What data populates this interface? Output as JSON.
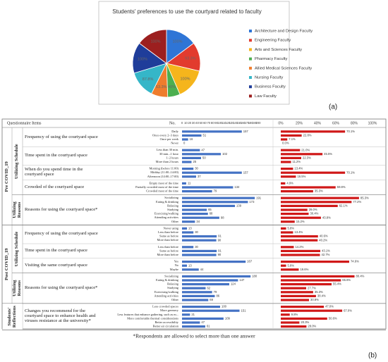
{
  "chart_data": [
    {
      "type": "pie",
      "title": "Students' preferences to use the courtyard related to faculty",
      "categories": [
        "Architecture and Design Faculty",
        "Engineering Faculty",
        "Arts and Sciences Faculty",
        "Pharmacy Faculty",
        "Allied Medical Sciences Faculty",
        "Nursing Faculty",
        "Business Faculty",
        "Law Faculty"
      ],
      "values": [
        100,
        93.3,
        100,
        40,
        53.3,
        87.8,
        100,
        100
      ],
      "value_labels": [
        "100%",
        "93.3%",
        "100%",
        "40%",
        "53.3%",
        "87.8%",
        "100%",
        "100%"
      ],
      "colors": [
        "#2f75d6",
        "#e23b2e",
        "#f5b51c",
        "#4caf50",
        "#ef7d2d",
        "#35b6c8",
        "#1f3d9a",
        "#9c1f1f"
      ],
      "legend": "right",
      "panel_label": "(a)"
    },
    {
      "type": "table_bars",
      "header": {
        "items": "Questionnaire Items",
        "count": "No."
      },
      "xlim": [
        0,
        200
      ],
      "xticks": [
        0,
        10,
        20,
        30,
        40,
        50,
        60,
        70,
        80,
        90,
        100,
        110,
        120,
        130,
        140,
        150,
        160,
        170,
        180,
        190,
        200
      ],
      "x2lim": [
        0,
        100
      ],
      "x2ticks": [
        {
          "value": 0,
          "label": "0%"
        },
        {
          "value": 20,
          "label": "20%"
        },
        {
          "value": 40,
          "label": "40%"
        },
        {
          "value": 60,
          "label": "60%"
        },
        {
          "value": 80,
          "label": "80%"
        },
        {
          "value": 100,
          "label": "100%"
        }
      ],
      "count_color": "#4472c4",
      "percent_color": "#d01818",
      "periods": [
        {
          "label": "Pre COVID_19",
          "groups": [
            {
              "label": "Utilizing Schedule",
              "questions": [
                {
                  "text": "Frequency of using the courtyard space",
                  "categories": [
                    "Daily",
                    "Once every 2–3 days",
                    "Once per week",
                    "Never"
                  ],
                  "values": [
                    157,
                    51,
                    16,
                    0
                  ],
                  "percents": [
                    70.1,
                    22.8,
                    7.1,
                    0.0
                  ],
                  "percent_labels": [
                    "70.1%",
                    "22.8%",
                    "7.1%",
                    "0.0%"
                  ]
                },
                {
                  "text": "Time spent in the courtyard space",
                  "categories": [
                    "Less than 30 min.",
                    "30 min.–1 hour",
                    "1–2 hours",
                    "More than 2 hours"
                  ],
                  "values": [
                    47,
                    102,
                    50,
                    25
                  ],
                  "percents": [
                    21.0,
                    45.5,
                    22.3,
                    11.2
                  ],
                  "percent_labels": [
                    "21.0%",
                    "45.5%",
                    "22.3%",
                    "11.2%"
                  ]
                },
                {
                  "text": "When do you spend time in the courtyard space",
                  "categories": [
                    "Morning (before 11:00)",
                    "Midday (11:00–14:00)",
                    "Afternoon (14:00–17:00)"
                  ],
                  "values": [
                    30,
                    157,
                    37
                  ],
                  "percents": [
                    13.4,
                    70.1,
                    16.5
                  ],
                  "percent_labels": [
                    "13.4%",
                    "70.1%",
                    "16.5%"
                  ]
                },
                {
                  "text": "Crowded of the courtyard space",
                  "categories": [
                    "Empty most of the time",
                    "Partially crowded most of the time",
                    "Crowded most of the time"
                  ],
                  "values": [
                    11,
                    134,
                    79
                  ],
                  "percents": [
                    4.9,
                    59.8,
                    35.3
                  ],
                  "percent_labels": [
                    "4.9%",
                    "59.8%",
                    "35.3%"
                  ]
                }
              ]
            },
            {
              "label": "Utilizing Reasons",
              "questions": [
                {
                  "text": "Reasons for using the courtyard space*",
                  "categories": [
                    "Socializing",
                    "Eating & drinking",
                    "Relaxing",
                    "Studying",
                    "Exercising/walking",
                    "Attending activities",
                    "Other"
                  ],
                  "values": [
                    191,
                    173,
                    139,
                    65,
                    68,
                    98,
                    34
                  ],
                  "percents": [
                    85.3,
                    77.2,
                    62.1,
                    29.0,
                    30.4,
                    43.8,
                    15.2
                  ],
                  "percent_labels": [
                    "85.3%",
                    "77.2%",
                    "62.1%",
                    "29.0%",
                    "30.4%",
                    "43.8%",
                    "15.2%"
                  ]
                }
              ]
            }
          ]
        },
        {
          "label": "Post COVID_19",
          "groups": [
            {
              "label": "Utilizing Schedule",
              "questions": [
                {
                  "text": "Frequency of using the courtyard space",
                  "categories": [
                    "Never using",
                    "Less than before",
                    "Same as before",
                    "More than before"
                  ],
                  "values": [
                    13,
                    30,
                    91,
                    90
                  ],
                  "percents": [
                    5.8,
                    13.4,
                    40.6,
                    40.2
                  ],
                  "percent_labels": [
                    "5.8%",
                    "13.4%",
                    "40.6%",
                    "40.2%"
                  ]
                },
                {
                  "text": "Time spent in the courtyard space",
                  "categories": [
                    "Less than before",
                    "Same as before",
                    "More than before"
                  ],
                  "values": [
                    30,
                    91,
                    90
                  ],
                  "percents": [
                    14.2,
                    43.1,
                    42.7
                  ],
                  "percent_labels": [
                    "14.2%",
                    "43.1%",
                    "42.7%"
                  ]
                },
                {
                  "text": "Visiting the same courtyard space",
                  "categories": [
                    "Yes",
                    "No",
                    "Maybe"
                  ],
                  "values": [
                    167,
                    13,
                    44
                  ],
                  "percents": [
                    74.6,
                    5.8,
                    19.6
                  ],
                  "percent_labels": [
                    "74.6%",
                    "5.8%",
                    "19.6%"
                  ]
                }
              ]
            },
            {
              "label": "Utilizing Reasons",
              "questions": [
                {
                  "text": "Reasons for using the courtyard space*",
                  "categories": [
                    "Socializing",
                    "Eating & drinking",
                    "Relaxing",
                    "Studying",
                    "Exercising/walking",
                    "Attending activities",
                    "Other"
                  ],
                  "values": [
                    180,
                    147,
                    124,
                    62,
                    79,
                    86,
                    69
                  ],
                  "percents": [
                    80.4,
                    65.6,
                    55.4,
                    27.7,
                    35.3,
                    38.4,
                    30.8
                  ],
                  "percent_labels": [
                    "80.4%",
                    "65.6%",
                    "55.4%",
                    "27.7%",
                    "35.3%",
                    "38.4%",
                    "30.8%"
                  ]
                }
              ]
            }
          ]
        },
        {
          "label": "Students' Reflections",
          "groups": [
            {
              "questions": [
                {
                  "text": "Changes you recommend for the courtyard space to enhance health and viruses resistance at the university*",
                  "categories": [
                    "Less crowded spaces",
                    "More greenery",
                    "Less features that enhance gathering, such as m...",
                    "More comfortable thermal considerations",
                    "Better accessibility",
                    "Better air circulation"
                  ],
                  "values": [
                    100,
                    151,
                    21,
                    109,
                    47,
                    61
                  ],
                  "percents": [
                    47.0,
                    67.0,
                    9.8,
                    50.6,
                    20.3,
                    28.0
                  ],
                  "percent_labels": [
                    "47.0%",
                    "67.0%",
                    "9.8%",
                    "50.6%",
                    "20.3%",
                    "28.0%"
                  ]
                }
              ]
            }
          ]
        }
      ],
      "footnote": "*Respondents are allowed to select more than one answer",
      "panel_label": "(b)"
    }
  ]
}
